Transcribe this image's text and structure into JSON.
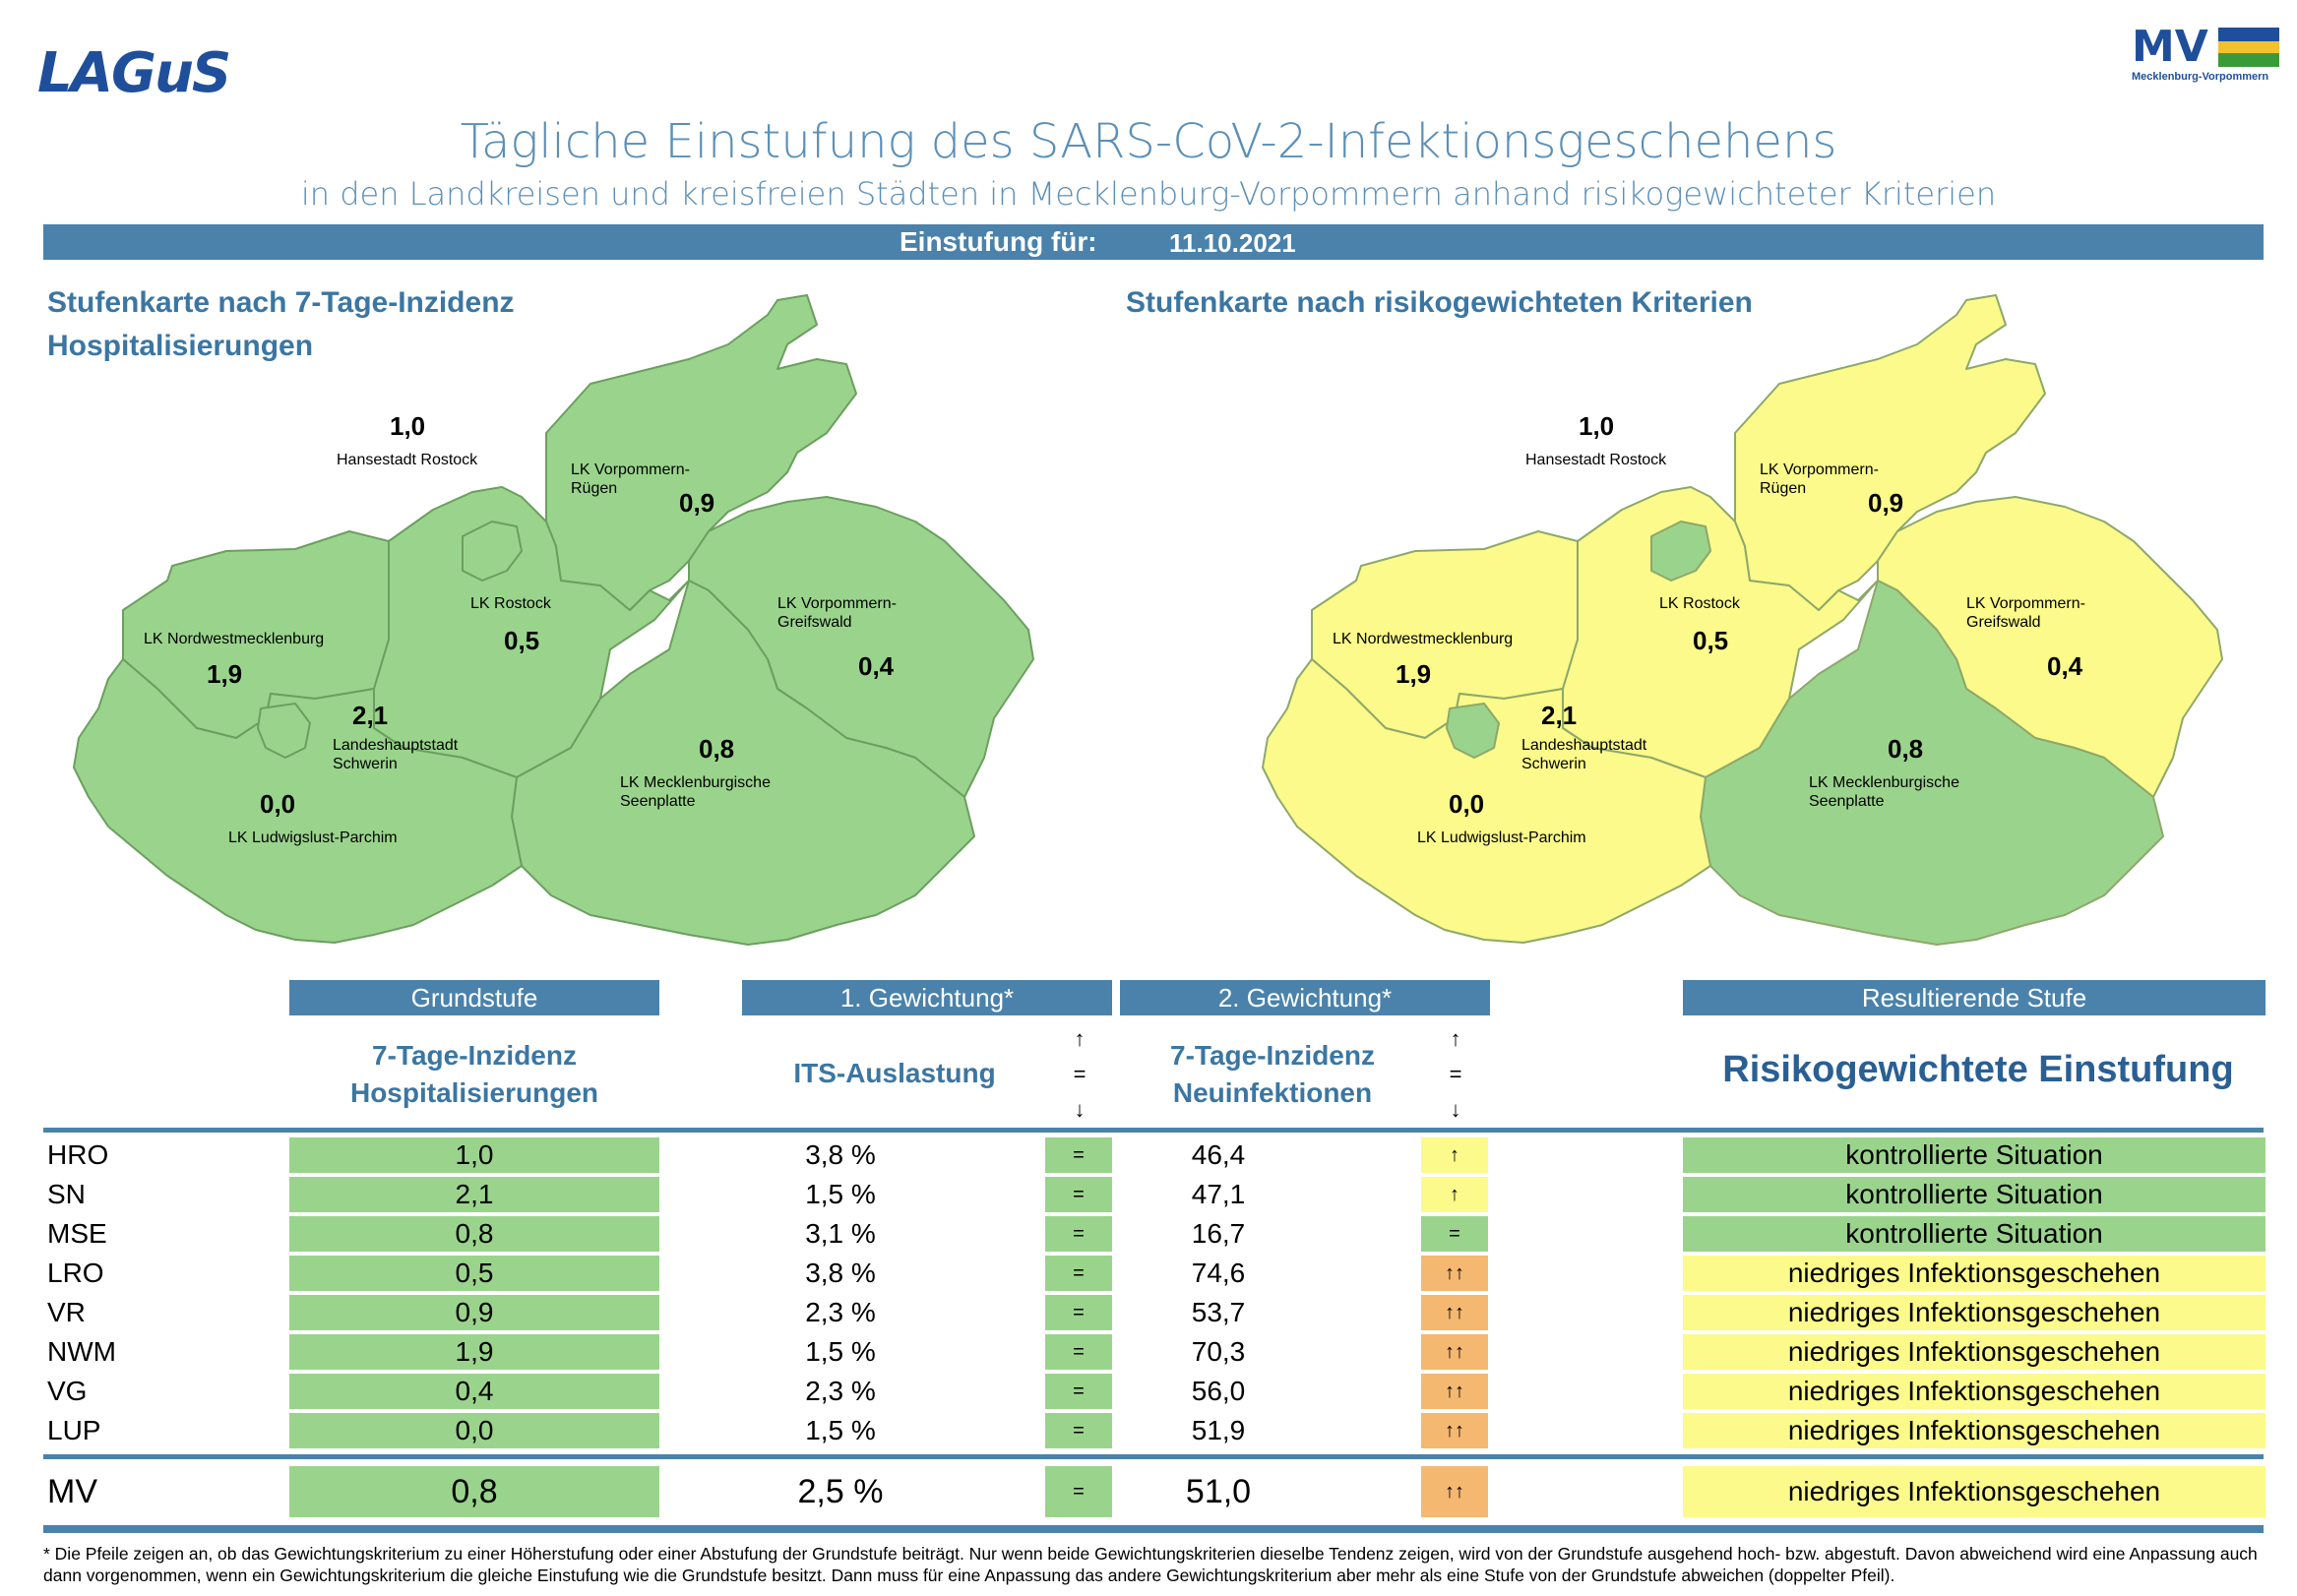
{
  "logos": {
    "left": "LAGuS",
    "right": "MV",
    "right_sub": "Mecklenburg-Vorpommern"
  },
  "title": "Tägliche Einstufung des SARS-CoV-2-Infektionsgeschehens",
  "subtitle": "in den Landkreisen und kreisfreien Städten in Mecklenburg-Vorpommern anhand risikogewichteter Kriterien",
  "date_label": "Einstufung für:",
  "date_value": "11.10.2021",
  "map_left": {
    "title_line1": "Stufenkarte nach 7-Tage-Inzidenz",
    "title_line2": "Hospitalisierungen"
  },
  "map_right": {
    "title_line1": "Stufenkarte nach risikogewichteten Kriterien"
  },
  "regions": {
    "hro": {
      "name": "Hansestadt Rostock",
      "value": "1,0",
      "left_fill": "#9ad48c",
      "right_fill": "#9ad48c"
    },
    "vr": {
      "name1": "LK Vorpommern-",
      "name2": "Rügen",
      "value": "0,9",
      "left_fill": "#9ad48c",
      "right_fill": "#fbfa8a"
    },
    "lro": {
      "name": "LK Rostock",
      "value": "0,5",
      "left_fill": "#9ad48c",
      "right_fill": "#fbfa8a"
    },
    "nwm": {
      "name": "LK Nordwestmecklenburg",
      "value": "1,9",
      "left_fill": "#9ad48c",
      "right_fill": "#fbfa8a"
    },
    "vg": {
      "name1": "LK Vorpommern-",
      "name2": "Greifswald",
      "value": "0,4",
      "left_fill": "#9ad48c",
      "right_fill": "#fbfa8a"
    },
    "sn": {
      "name1": "Landeshauptstadt",
      "name2": "Schwerin",
      "value": "2,1",
      "left_fill": "#9ad48c",
      "right_fill": "#9ad48c"
    },
    "mse": {
      "name1": "LK Mecklenburgische",
      "name2": "Seenplatte",
      "value": "0,8",
      "left_fill": "#9ad48c",
      "right_fill": "#9ad48c"
    },
    "lup": {
      "name": "LK Ludwigslust-Parchim",
      "value": "0,0",
      "left_fill": "#9ad48c",
      "right_fill": "#fbfa8a"
    }
  },
  "table": {
    "h_grundstufe": "Grundstufe",
    "h_gew1": "1. Gewichtung*",
    "h_gew2": "2. Gewichtung*",
    "h_result": "Resultierende Stufe",
    "sub_grund_1": "7-Tage-Inzidenz",
    "sub_grund_2": "Hospitalisierungen",
    "sub_its": "ITS-Auslastung",
    "sub_inz_1": "7-Tage-Inzidenz",
    "sub_inz_2": "Neuinfektionen",
    "legend_up": "↑",
    "legend_eq": "=",
    "legend_down": "↓",
    "sub_result": "Risikogewichtete Einstufung",
    "rows": [
      {
        "name": "HRO",
        "grund": "1,0",
        "its": "3,8 %",
        "its_trend": "=",
        "inz": "46,4",
        "inz_trend": "↑",
        "result": "kontrollierte Situation"
      },
      {
        "name": "SN",
        "grund": "2,1",
        "its": "1,5 %",
        "its_trend": "=",
        "inz": "47,1",
        "inz_trend": "↑",
        "result": "kontrollierte Situation"
      },
      {
        "name": "MSE",
        "grund": "0,8",
        "its": "3,1 %",
        "its_trend": "=",
        "inz": "16,7",
        "inz_trend": "=",
        "result": "kontrollierte Situation"
      },
      {
        "name": "LRO",
        "grund": "0,5",
        "its": "3,8 %",
        "its_trend": "=",
        "inz": "74,6",
        "inz_trend": "↑↑",
        "result": "niedriges Infektionsgeschehen"
      },
      {
        "name": "VR",
        "grund": "0,9",
        "its": "2,3 %",
        "its_trend": "=",
        "inz": "53,7",
        "inz_trend": "↑↑",
        "result": "niedriges Infektionsgeschehen"
      },
      {
        "name": "NWM",
        "grund": "1,9",
        "its": "1,5 %",
        "its_trend": "=",
        "inz": "70,3",
        "inz_trend": "↑↑",
        "result": "niedriges Infektionsgeschehen"
      },
      {
        "name": "VG",
        "grund": "0,4",
        "its": "2,3 %",
        "its_trend": "=",
        "inz": "56,0",
        "inz_trend": "↑↑",
        "result": "niedriges Infektionsgeschehen"
      },
      {
        "name": "LUP",
        "grund": "0,0",
        "its": "1,5 %",
        "its_trend": "=",
        "inz": "51,9",
        "inz_trend": "↑↑",
        "result": "niedriges Infektionsgeschehen"
      }
    ],
    "total": {
      "name": "MV",
      "grund": "0,8",
      "its": "2,5 %",
      "its_trend": "=",
      "inz": "51,0",
      "inz_trend": "↑↑",
      "result": "niedriges Infektionsgeschehen"
    }
  },
  "colors": {
    "green": "#9ad48c",
    "yellow": "#fbfa8a",
    "orange": "#f5b870",
    "bar": "#4a82ab",
    "heading": "#3b76a3"
  },
  "footnote": "* Die Pfeile zeigen an, ob das Gewichtungskriterium zu einer Höherstufung oder einer Abstufung der Grundstufe beiträgt. Nur wenn beide Gewichtungskriterien dieselbe Tendenz zeigen, wird von der Grundstufe ausgehend hoch- bzw. abgestuft.  Davon abweichend wird eine Anpassung auch dann vorgenommen, wenn ein Gewichtungskriterium die gleiche Einstufung wie die Grundstufe besitzt. Dann muss für eine Anpassung das andere Gewichtungskriterium aber mehr als eine Stufe von der Grundstufe abweichen (doppelter Pfeil)."
}
